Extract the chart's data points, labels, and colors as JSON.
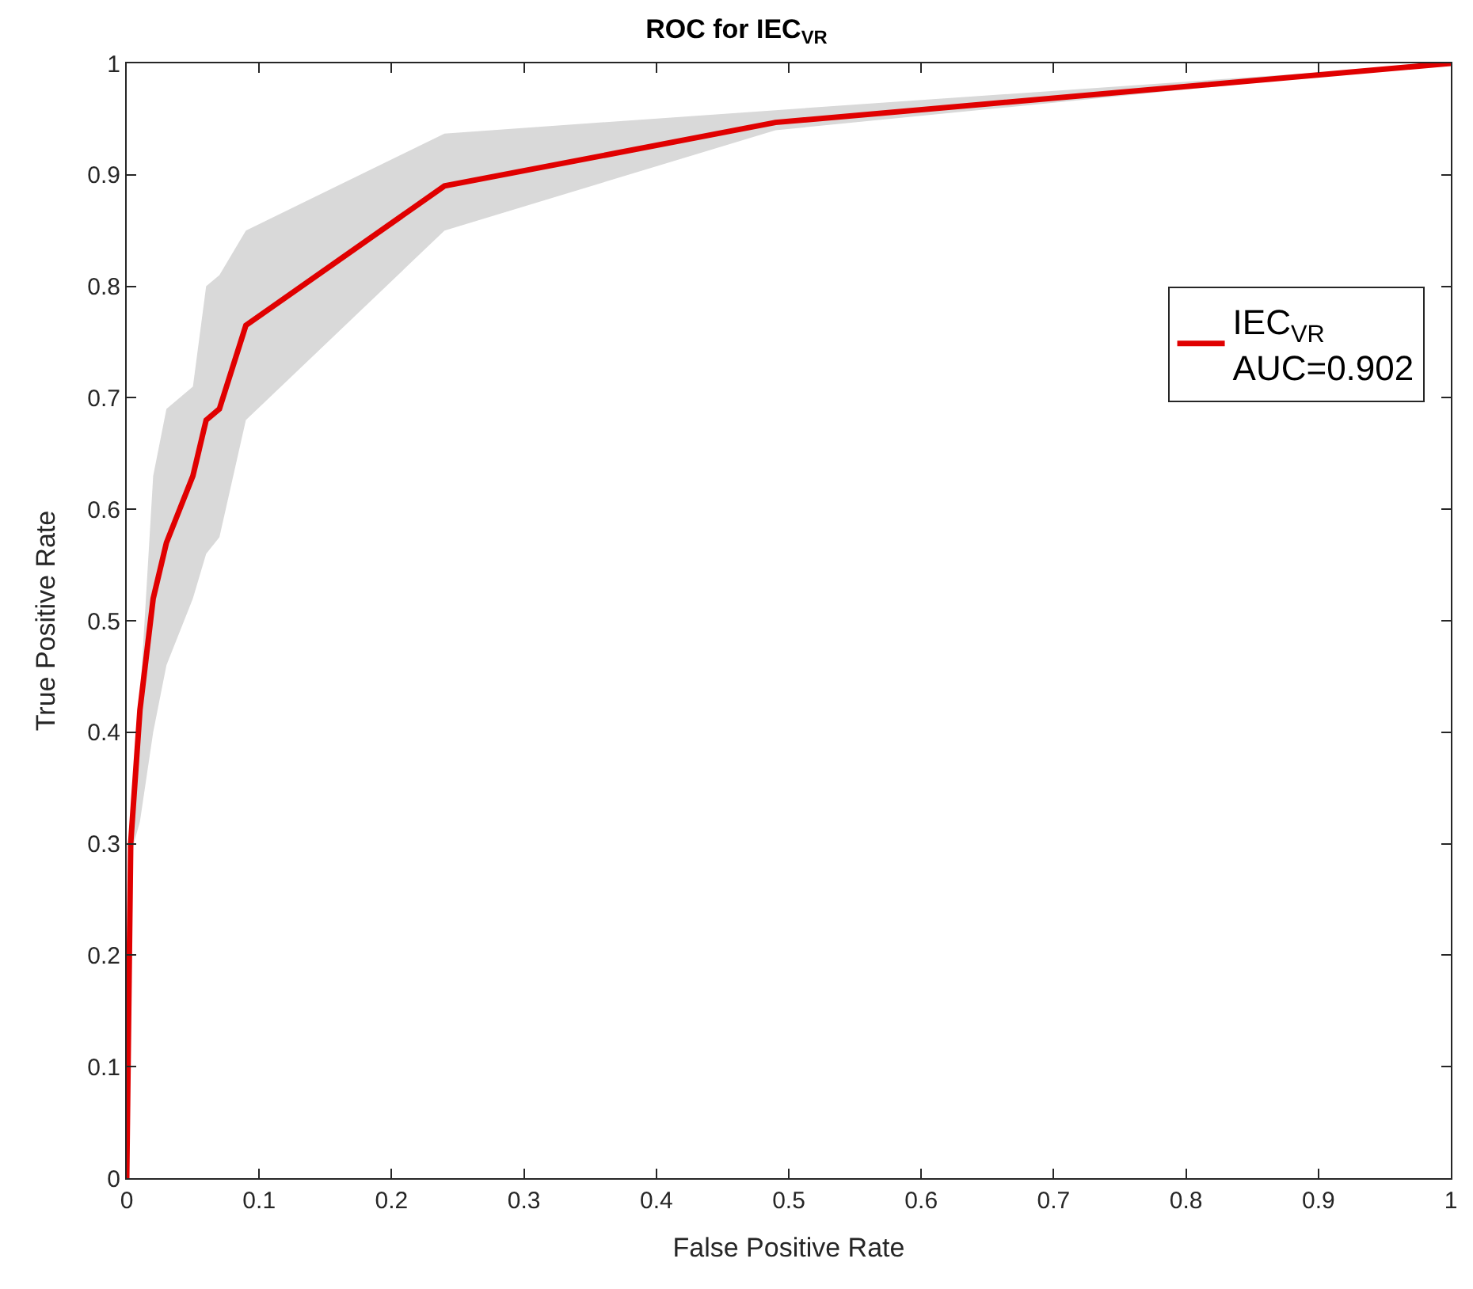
{
  "chart_data": {
    "type": "line",
    "title": "ROC for IEC$_{VR}$",
    "xlabel": "False Positive Rate",
    "ylabel": "True Positive Rate",
    "x": [
      0,
      0.003,
      0.01,
      0.02,
      0.03,
      0.05,
      0.06,
      0.07,
      0.09,
      0.24,
      0.49,
      1
    ],
    "series": [
      {
        "name": "IEC$_{VR}$\nAUC=0.902",
        "color": "#e00000",
        "values": [
          0,
          0.3,
          0.42,
          0.52,
          0.57,
          0.63,
          0.68,
          0.69,
          0.765,
          0.89,
          0.947,
          1
        ],
        "lower": [
          null,
          0.29,
          0.32,
          0.4,
          0.46,
          0.52,
          0.56,
          0.575,
          0.68,
          0.85,
          0.94,
          1
        ],
        "upper": [
          null,
          0.32,
          0.43,
          0.63,
          0.69,
          0.71,
          0.8,
          0.81,
          0.85,
          0.937,
          0.958,
          1
        ]
      }
    ],
    "xlim": [
      0,
      1
    ],
    "ylim": [
      0,
      1
    ],
    "xticks": [
      0,
      0.1,
      0.2,
      0.3,
      0.4,
      0.5,
      0.6,
      0.7,
      0.8,
      0.9,
      1
    ],
    "yticks": [
      0,
      0.1,
      0.2,
      0.3,
      0.4,
      0.5,
      0.6,
      0.7,
      0.8,
      0.9,
      1
    ],
    "grid": false,
    "legend": "right",
    "marker": "none",
    "line_style": "solid"
  }
}
